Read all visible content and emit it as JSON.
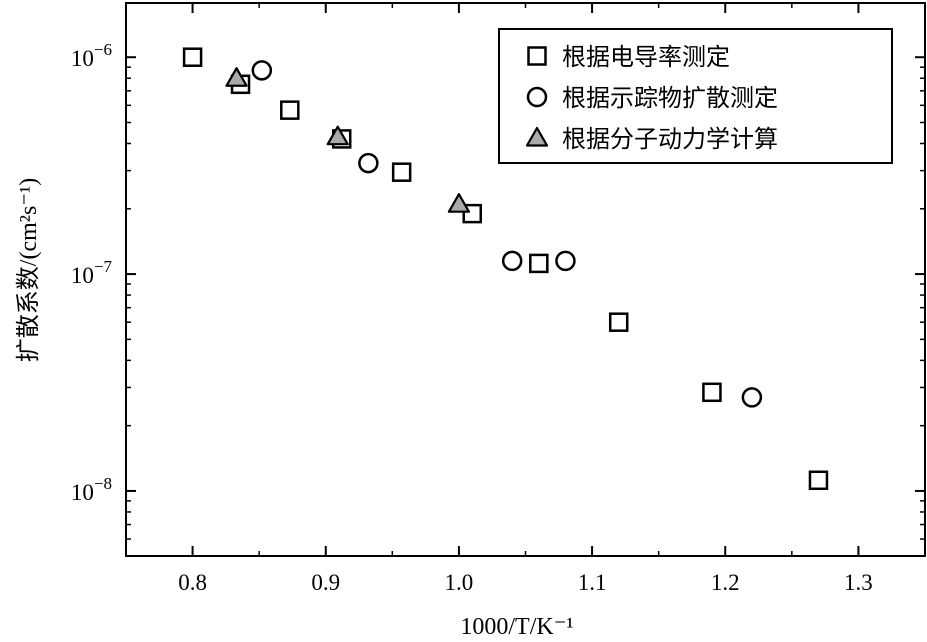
{
  "chart_data": {
    "type": "scatter",
    "xlabel": "1000/T/K⁻¹",
    "ylabel": "扩散系数/(cm²s⁻¹)",
    "xlim": [
      0.75,
      1.35
    ],
    "ylim_log10": [
      -8.3,
      -5.75
    ],
    "y_scale": "log",
    "x_ticks": [
      0.8,
      0.9,
      1.0,
      1.1,
      1.2,
      1.3
    ],
    "x_tick_labels": [
      "0.8",
      "0.9",
      "1.0",
      "1.1",
      "1.2",
      "1.3"
    ],
    "y_ticks_log10": [
      -8,
      -7,
      -6
    ],
    "y_tick_labels": [
      {
        "base": "10",
        "exp": "−8"
      },
      {
        "base": "10",
        "exp": "−7"
      },
      {
        "base": "10",
        "exp": "−6"
      }
    ],
    "grid": false,
    "legend_position": "top-right",
    "series": [
      {
        "name": "根据电导率测定",
        "marker": "square",
        "fill": "#ffffff",
        "points": [
          [
            0.8,
            1e-06
          ],
          [
            0.836,
            7.5e-07
          ],
          [
            0.873,
            5.7e-07
          ],
          [
            0.912,
            4.2e-07
          ],
          [
            0.957,
            2.95e-07
          ],
          [
            1.01,
            1.9e-07
          ],
          [
            1.06,
            1.12e-07
          ],
          [
            1.12,
            6e-08
          ],
          [
            1.19,
            2.85e-08
          ],
          [
            1.27,
            1.12e-08
          ]
        ]
      },
      {
        "name": "根据示踪物扩散测定",
        "marker": "circle",
        "fill": "#ffffff",
        "points": [
          [
            0.852,
            8.7e-07
          ],
          [
            0.932,
            3.25e-07
          ],
          [
            1.04,
            1.15e-07
          ],
          [
            1.08,
            1.15e-07
          ],
          [
            1.22,
            2.7e-08
          ]
        ]
      },
      {
        "name": "根据分子动力学计算",
        "marker": "triangle",
        "fill": "#a9a9a9",
        "points": [
          [
            0.833,
            8e-07
          ],
          [
            0.909,
            4.3e-07
          ],
          [
            1.0,
            2.1e-07
          ]
        ]
      }
    ]
  }
}
